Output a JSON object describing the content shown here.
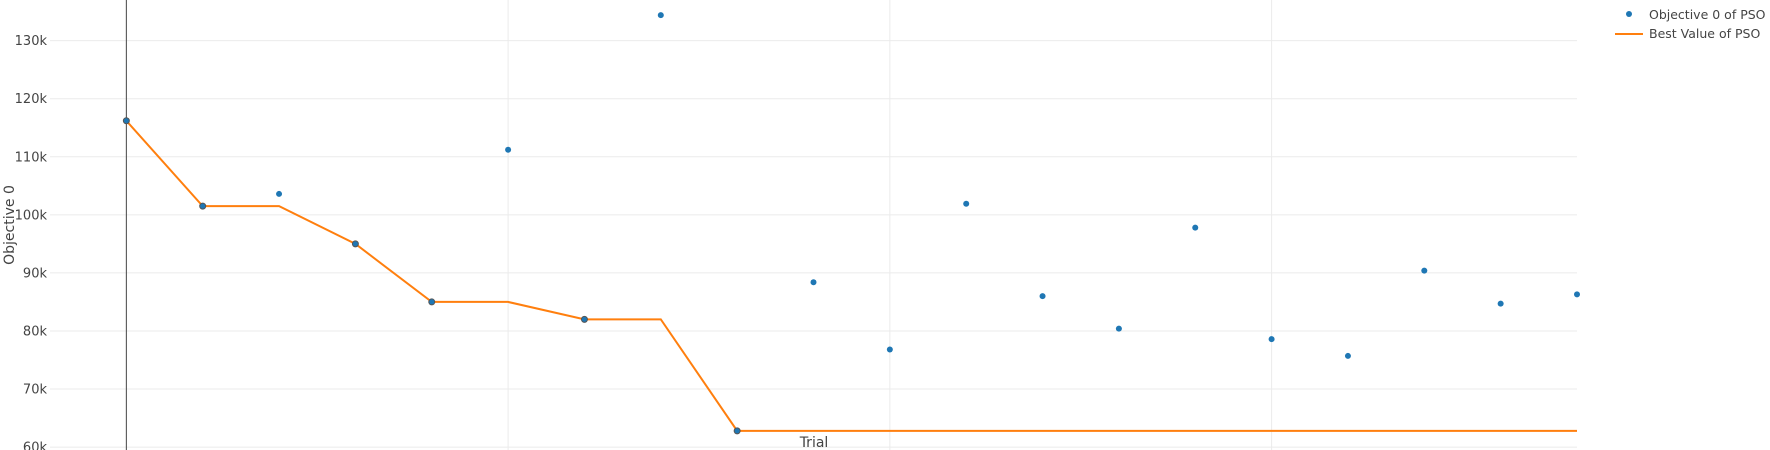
{
  "chart_data": {
    "type": "scatter",
    "title": "",
    "xlabel": "Trial",
    "ylabel": "Objective 0",
    "xlim": [
      -1,
      19
    ],
    "ylim": [
      59500,
      137000
    ],
    "y_ticks": [
      60000,
      70000,
      80000,
      90000,
      100000,
      110000,
      120000,
      130000
    ],
    "y_tick_labels": [
      "60k",
      "70k",
      "80k",
      "90k",
      "100k",
      "110k",
      "120k",
      "130k"
    ],
    "grid": true,
    "legend_position": "top-right",
    "colors": {
      "scatter": "#1f77b4",
      "line": "#ff7f0e",
      "grid": "#ebebeb",
      "marker_edge": "#555555"
    },
    "series": [
      {
        "name": "Objective 0 of PSO",
        "mode": "markers",
        "x": [
          0,
          1,
          2,
          3,
          4,
          5,
          6,
          7,
          8,
          9,
          10,
          11,
          12,
          13,
          14,
          15,
          16,
          17,
          18,
          19
        ],
        "y": [
          116200,
          101500,
          103600,
          95000,
          85000,
          111200,
          82000,
          134400,
          62800,
          88400,
          76800,
          101900,
          86000,
          80400,
          97800,
          78600,
          75700,
          90400,
          84700,
          86300
        ]
      },
      {
        "name": "Best Value of PSO",
        "mode": "lines",
        "x": [
          0,
          1,
          2,
          3,
          4,
          5,
          6,
          7,
          8,
          9,
          10,
          11,
          12,
          13,
          14,
          15,
          16,
          17,
          18,
          19
        ],
        "y": [
          116200,
          101500,
          101500,
          95000,
          85000,
          85000,
          82000,
          82000,
          62800,
          62800,
          62800,
          62800,
          62800,
          62800,
          62800,
          62800,
          62800,
          62800,
          62800,
          62800
        ]
      }
    ]
  }
}
